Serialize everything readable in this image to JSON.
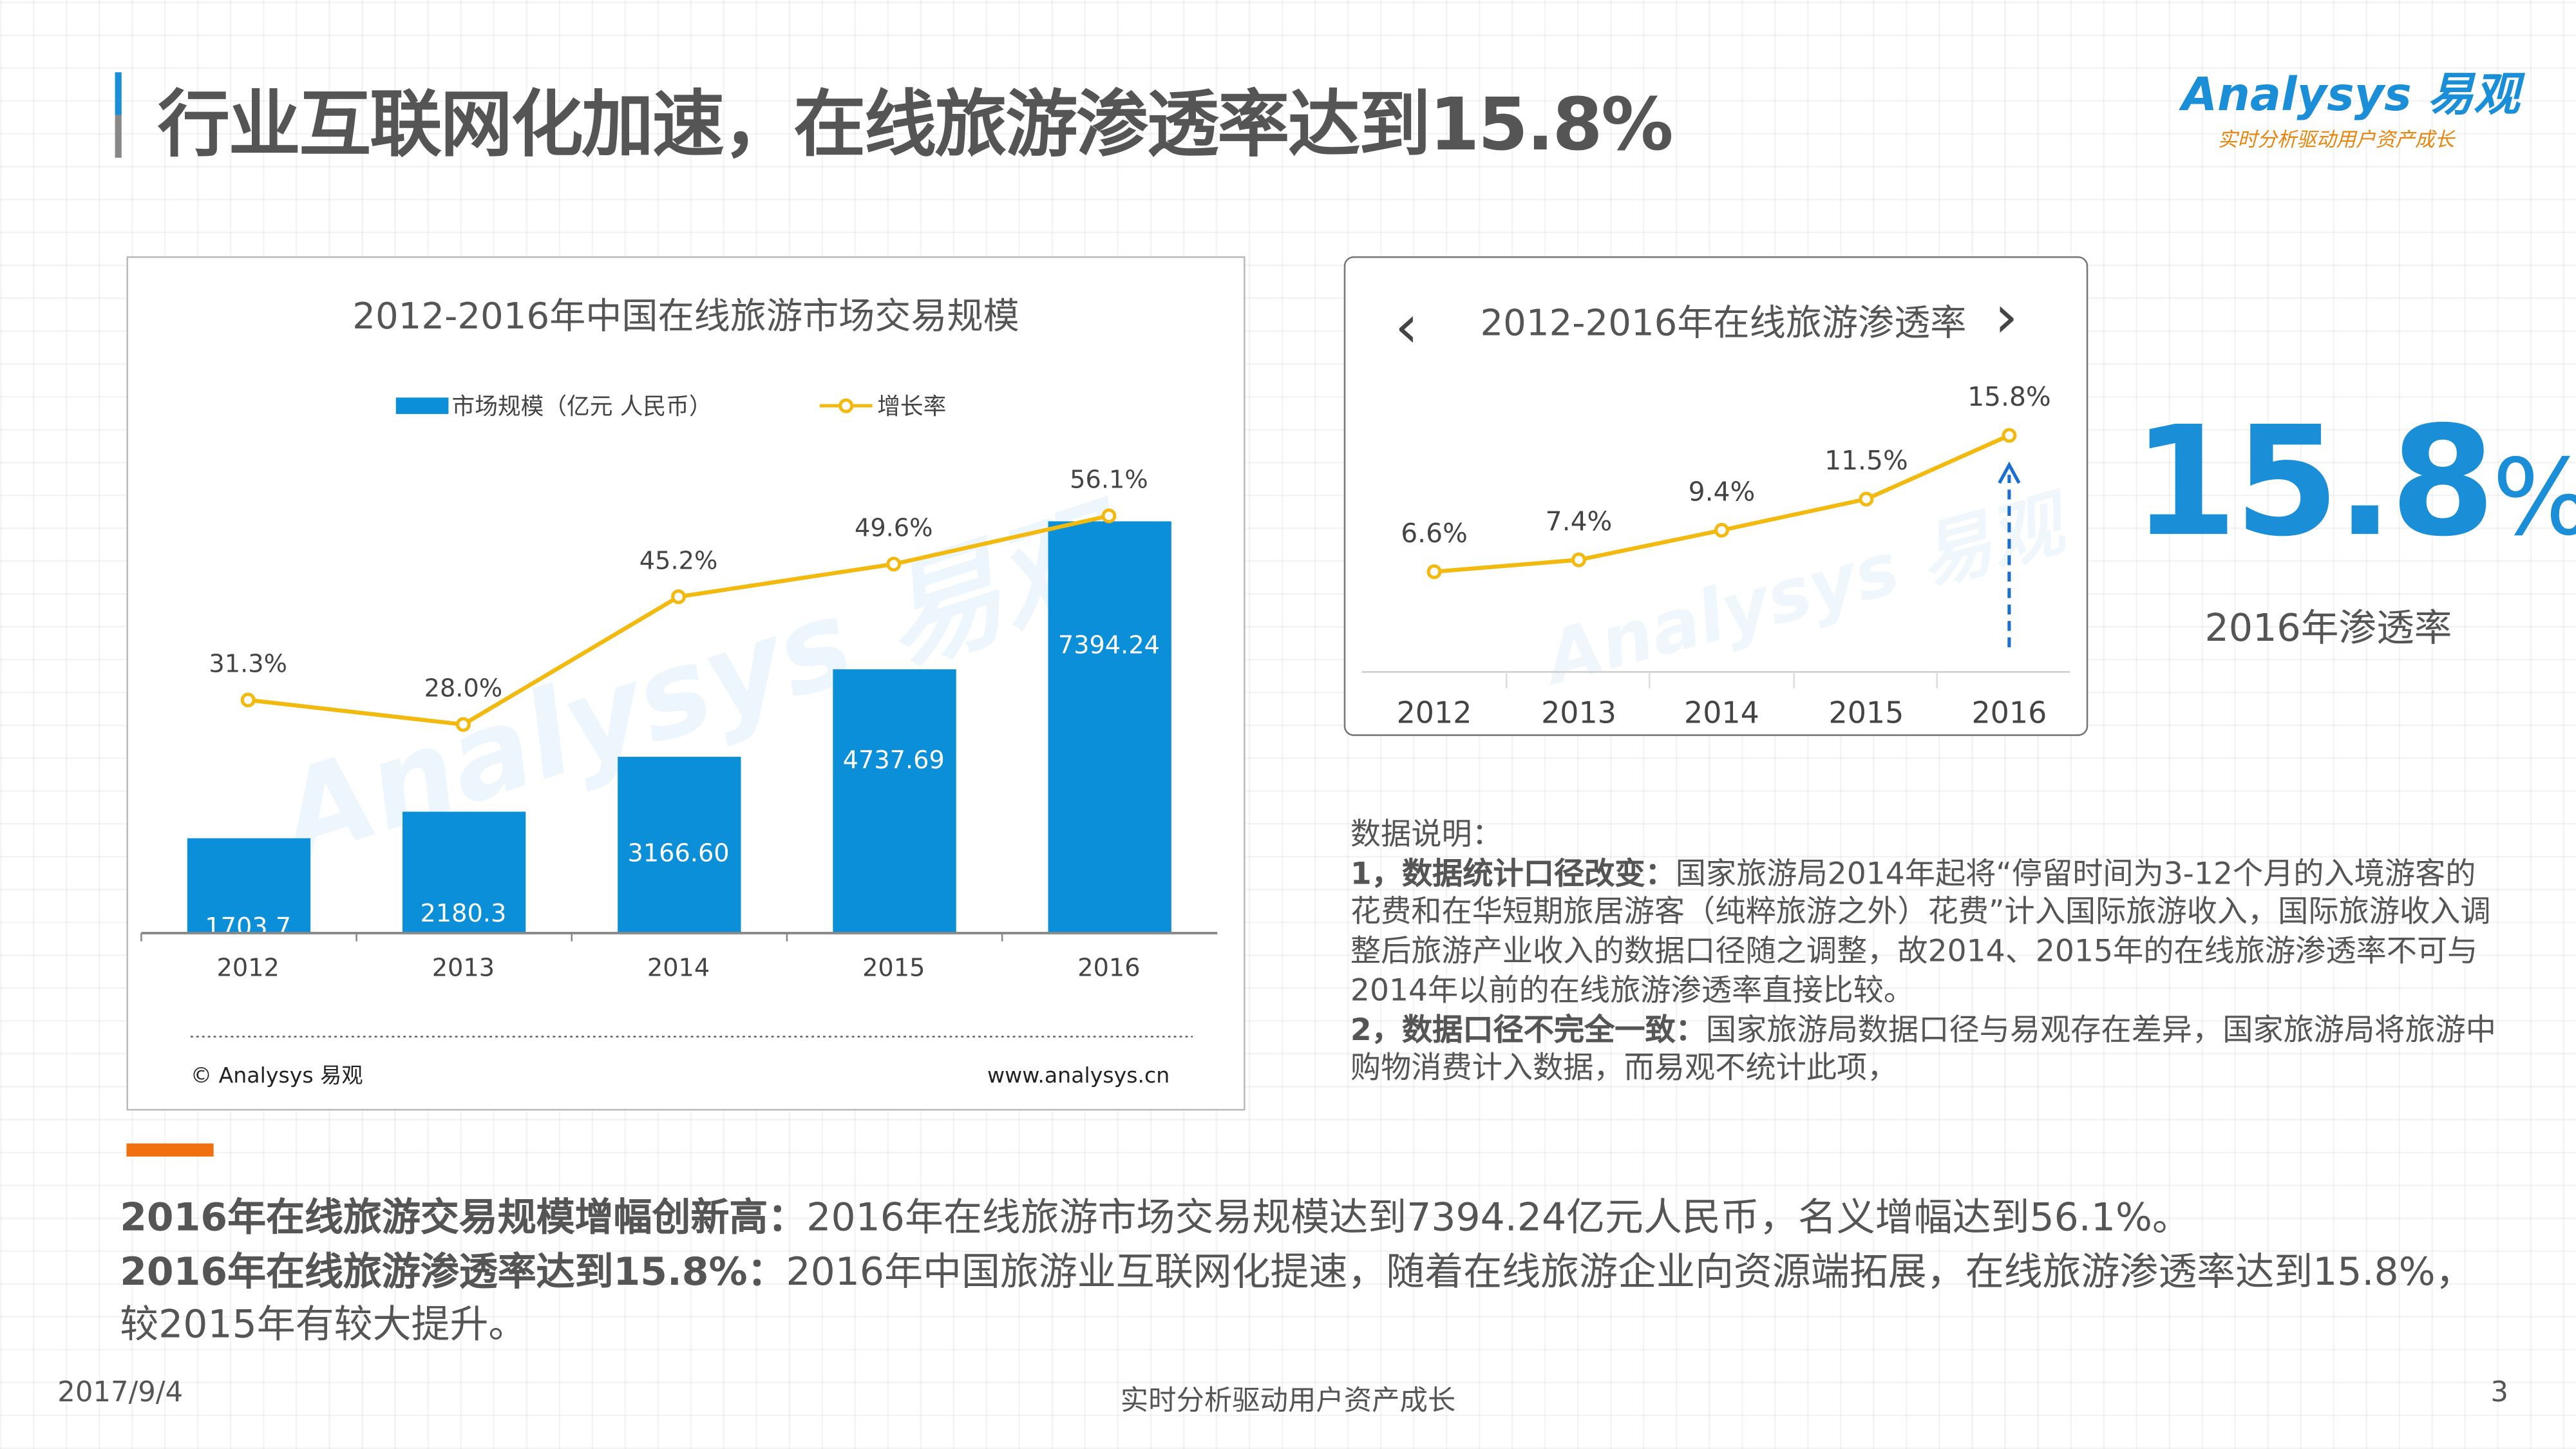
{
  "header": {
    "title": "行业互联网化加速，在线旅游渗透率达到15.8%",
    "logo_text": "Analysys 易观",
    "logo_tagline": "实时分析驱动用户资产成长",
    "accent_color": "#1a8fd8",
    "logo_tagline_color": "#e8850c"
  },
  "chart_data": [
    {
      "type": "bar",
      "title": "2012-2016年中国在线旅游市场交易规模",
      "categories": [
        "2012",
        "2013",
        "2014",
        "2015",
        "2016"
      ],
      "series": [
        {
          "name": "市场规模（亿元 人民币）",
          "type": "bar",
          "values": [
            1703.7,
            2180.3,
            3166.6,
            4737.69,
            7394.24
          ],
          "labels": [
            "1703.7",
            "2180.3",
            "3166.60",
            "4737.69",
            "7394.24"
          ],
          "color": "#0a8fd8"
        },
        {
          "name": "增长率",
          "type": "line",
          "values": [
            31.3,
            28.0,
            45.2,
            49.6,
            56.1
          ],
          "labels": [
            "31.3%",
            "28.0%",
            "45.2%",
            "49.6%",
            "56.1%"
          ],
          "color": "#f2b90f"
        }
      ],
      "legend": "top",
      "grid": false,
      "source_left": "© Analysys 易观",
      "source_right": "www.analysys.cn"
    },
    {
      "type": "line",
      "title": "2012-2016年在线旅游渗透率",
      "categories": [
        "2012",
        "2013",
        "2014",
        "2015",
        "2016"
      ],
      "values": [
        6.6,
        7.4,
        9.4,
        11.5,
        15.8
      ],
      "labels": [
        "6.6%",
        "7.4%",
        "9.4%",
        "11.5%",
        "15.8%"
      ],
      "color": "#f2b90f",
      "arrow_color": "#1a6fd0",
      "grid": false
    }
  ],
  "highlight": {
    "value": "15.8",
    "unit": "%",
    "caption": "2016年渗透率"
  },
  "notes": {
    "heading": "数据说明：",
    "item1_bold": "1，数据统计口径改变：",
    "item1_text": "国家旅游局2014年起将“停留时间为3-12个月的入境游客的花费和在华短期旅居游客（纯粹旅游之外）花费”计入国际旅游收入，国际旅游收入调整后旅游产业收入的数据口径随之调整，故2014、2015年的在线旅游渗透率不可与2014年以前的在线旅游渗透率直接比较。",
    "item2_bold": "2，数据口径不完全一致：",
    "item2_text": "国家旅游局数据口径与易观存在差异，国家旅游局将旅游中购物消费计入数据，而易观不统计此项，"
  },
  "summary": {
    "p1_bold": "2016年在线旅游交易规模增幅创新高：",
    "p1_text": "2016年在线旅游市场交易规模达到7394.24亿元人民币，名义增幅达到56.1%。",
    "p2_bold": "2016年在线旅游渗透率达到15.8%：",
    "p2_text": "2016年中国旅游业互联网化提速，随着在线旅游企业向资源端拓展，在线旅游渗透率达到15.8%，较2015年有较大提升。"
  },
  "footer": {
    "date": "2017/9/4",
    "tagline": "实时分析驱动用户资产成长",
    "page": "3"
  }
}
